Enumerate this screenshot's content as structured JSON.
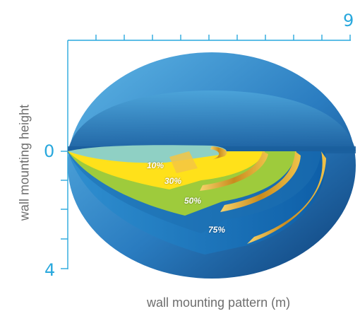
{
  "axes": {
    "top_value": "9",
    "left_top_value": "0",
    "left_bottom_value": "4",
    "ylabel": "wall mounting height",
    "xlabel": "wall mounting pattern (m)"
  },
  "zones": [
    {
      "label": "10%",
      "color": "#8fd0c4"
    },
    {
      "label": "30%",
      "color": "#ffe11a"
    },
    {
      "label": "50%",
      "color": "#9ecb3c"
    },
    {
      "label": "75%",
      "color": "#1d6fb0"
    }
  ],
  "colors": {
    "axis": "#29a8dd",
    "dome_light": "#4fa8dc",
    "dome_dark": "#0f4a86",
    "gold": "#d8a22a"
  }
}
